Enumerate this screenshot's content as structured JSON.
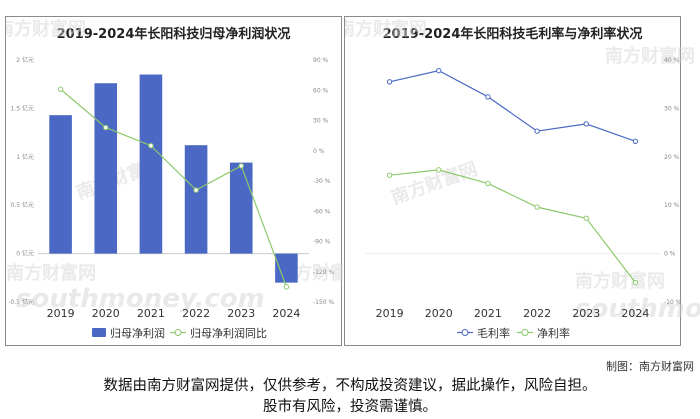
{
  "chart_data": [
    {
      "type": "bar",
      "title": "2019-2024年长阳科技归母净利润状况",
      "categories": [
        "2019",
        "2020",
        "2021",
        "2022",
        "2023",
        "2024"
      ],
      "series": [
        {
          "name": "归母净利润",
          "type": "bar",
          "axis": "left",
          "values": [
            1.43,
            1.76,
            1.85,
            1.12,
            0.94,
            -0.3
          ]
        },
        {
          "name": "归母净利润同比",
          "type": "line",
          "axis": "right",
          "values": [
            61,
            23,
            5,
            -39,
            -15,
            -135
          ]
        }
      ],
      "y_left": {
        "ticks": [
          "2 亿元",
          "1.5 亿元",
          "1 亿元",
          "0.5 亿元",
          "0 亿元",
          "-0.5 亿元"
        ],
        "ylim": [
          -0.5,
          2
        ]
      },
      "y_right": {
        "ticks": [
          "90 %",
          "60 %",
          "30 %",
          "0 %",
          "-30 %",
          "-60 %",
          "-90 %",
          "-120 %",
          "-150 %"
        ],
        "ylim": [
          -150,
          90
        ]
      },
      "legend_position": "bottom"
    },
    {
      "type": "line",
      "title": "2019-2024年长阳科技毛利率与净利率状况",
      "categories": [
        "2019",
        "2020",
        "2021",
        "2022",
        "2023",
        "2024"
      ],
      "series": [
        {
          "name": "毛利率",
          "values": [
            35.5,
            37.8,
            32.4,
            25.3,
            26.8,
            23.2
          ]
        },
        {
          "name": "净利率",
          "values": [
            16.2,
            17.3,
            14.5,
            9.6,
            7.3,
            -6.0
          ]
        }
      ],
      "y_right": {
        "ticks": [
          "40 %",
          "30 %",
          "20 %",
          "10 %",
          "0 %",
          "-10 %"
        ],
        "ylim": [
          -10,
          40
        ]
      },
      "legend_position": "bottom"
    }
  ],
  "colors": {
    "bar": "#4a68c4",
    "line_green": "#8cc96a",
    "line_blue": "#4a68c4",
    "border": "#8a8a8a"
  },
  "watermark": {
    "text": "南方财富网",
    "sub": "southmoney.com"
  },
  "credit": "制图：南方财富网",
  "footer": {
    "line1": "数据由南方财富网提供，仅供参考，不构成投资建议，据此操作，风险自担。",
    "line2": "股市有风险，投资需谨慎。"
  }
}
